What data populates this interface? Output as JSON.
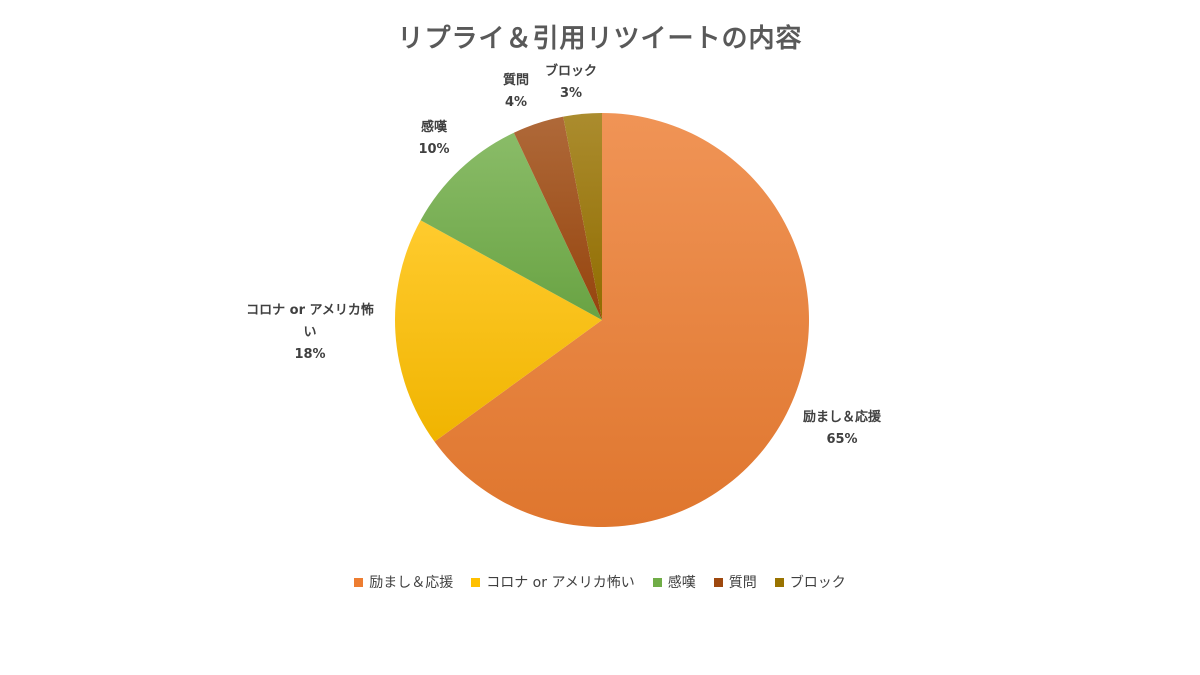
{
  "chart_data": {
    "type": "pie",
    "title": "リプライ＆引用リツイートの内容",
    "categories": [
      "励まし＆応援",
      "コロナ or アメリカ怖い",
      "感嘆",
      "質問",
      "ブロック"
    ],
    "values": [
      65,
      18,
      10,
      4,
      3
    ],
    "labels": [
      {
        "lines": [
          "励まし＆応援",
          "65%"
        ]
      },
      {
        "lines": [
          "コロナ or アメリカ怖",
          "い",
          "18%"
        ]
      },
      {
        "lines": [
          "感嘆",
          "10%"
        ]
      },
      {
        "lines": [
          "質問",
          "4%"
        ]
      },
      {
        "lines": [
          "ブロック",
          "3%"
        ]
      }
    ],
    "colors": [
      "#ED7D31",
      "#FFC000",
      "#70AD47",
      "#9E480E",
      "#997300"
    ],
    "legend_position": "bottom"
  }
}
